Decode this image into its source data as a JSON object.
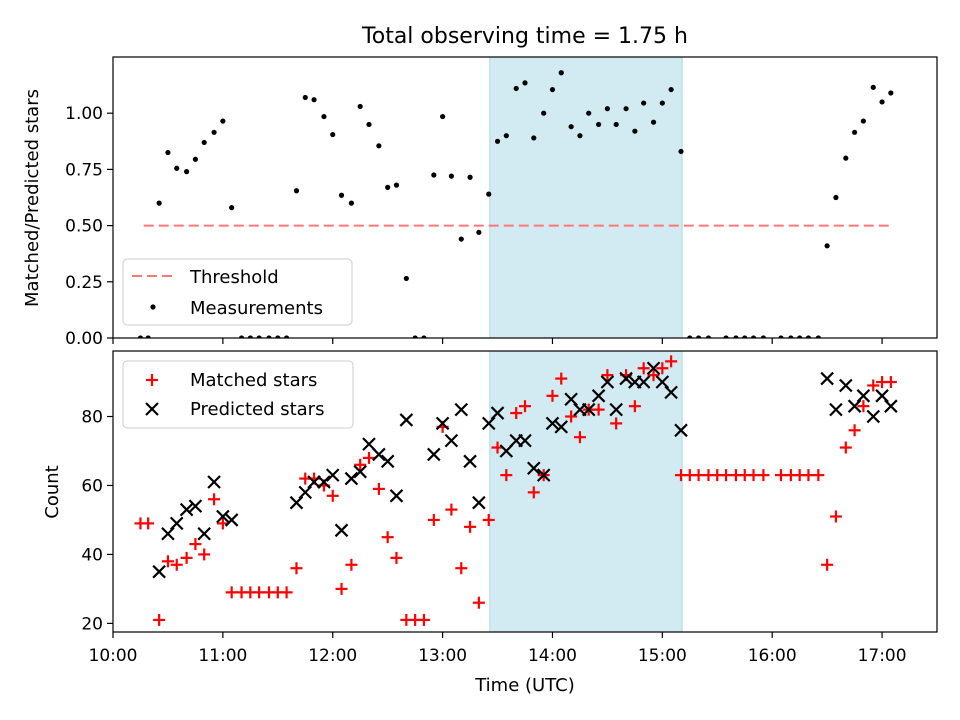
{
  "chart_data": {
    "title": "Total observing time = 1.75 h",
    "xlabel": "Time (UTC)",
    "xlim_hours": [
      10.0,
      17.5
    ],
    "x_tick_labels": [
      "10:00",
      "11:00",
      "12:00",
      "13:00",
      "14:00",
      "15:00",
      "16:00",
      "17:00"
    ],
    "x_tick_hours": [
      10,
      11,
      12,
      13,
      14,
      15,
      16,
      17
    ],
    "highlight_span_hours": [
      13.43,
      15.18
    ],
    "highlight_color": "#add8e6",
    "panels": [
      {
        "type": "scatter",
        "ylabel": "Matched/Predicted stars",
        "ylim": [
          0.0,
          1.25
        ],
        "y_ticks": [
          0.0,
          0.25,
          0.5,
          0.75,
          1.0
        ],
        "y_tick_labels": [
          "0.00",
          "0.25",
          "0.50",
          "0.75",
          "1.00"
        ],
        "legend_position": "lower-left",
        "threshold": {
          "name": "Threshold",
          "value": 0.5,
          "x_range_hours": [
            10.28,
            17.1
          ],
          "color": "#ff7777"
        },
        "series": [
          {
            "name": "Measurements",
            "marker": "dot",
            "color": "#000000",
            "points": [
              [
                10.25,
                0.0
              ],
              [
                10.32,
                0.0
              ],
              [
                10.42,
                0.6
              ],
              [
                10.5,
                0.825
              ],
              [
                10.58,
                0.755
              ],
              [
                10.67,
                0.74
              ],
              [
                10.75,
                0.795
              ],
              [
                10.83,
                0.87
              ],
              [
                10.92,
                0.915
              ],
              [
                11.0,
                0.965
              ],
              [
                11.08,
                0.58
              ],
              [
                11.17,
                0.0
              ],
              [
                11.25,
                0.0
              ],
              [
                11.33,
                0.0
              ],
              [
                11.42,
                0.0
              ],
              [
                11.5,
                0.0
              ],
              [
                11.58,
                0.0
              ],
              [
                11.67,
                0.655
              ],
              [
                11.75,
                1.07
              ],
              [
                11.83,
                1.06
              ],
              [
                11.92,
                0.985
              ],
              [
                12.0,
                0.905
              ],
              [
                12.08,
                0.635
              ],
              [
                12.17,
                0.6
              ],
              [
                12.25,
                1.03
              ],
              [
                12.33,
                0.95
              ],
              [
                12.42,
                0.855
              ],
              [
                12.5,
                0.67
              ],
              [
                12.58,
                0.68
              ],
              [
                12.67,
                0.265
              ],
              [
                12.75,
                0.0
              ],
              [
                12.83,
                0.0
              ],
              [
                12.92,
                0.725
              ],
              [
                13.0,
                0.985
              ],
              [
                13.08,
                0.72
              ],
              [
                13.17,
                0.44
              ],
              [
                13.25,
                0.715
              ],
              [
                13.33,
                0.47
              ],
              [
                13.42,
                0.64
              ],
              [
                13.5,
                0.875
              ],
              [
                13.58,
                0.9
              ],
              [
                13.67,
                1.11
              ],
              [
                13.75,
                1.135
              ],
              [
                13.83,
                0.89
              ],
              [
                13.92,
                1.0
              ],
              [
                14.0,
                1.105
              ],
              [
                14.08,
                1.18
              ],
              [
                14.17,
                0.94
              ],
              [
                14.25,
                0.9
              ],
              [
                14.33,
                1.0
              ],
              [
                14.42,
                0.95
              ],
              [
                14.5,
                1.02
              ],
              [
                14.58,
                0.95
              ],
              [
                14.67,
                1.02
              ],
              [
                14.75,
                0.92
              ],
              [
                14.83,
                1.045
              ],
              [
                14.92,
                0.96
              ],
              [
                15.0,
                1.045
              ],
              [
                15.08,
                1.105
              ],
              [
                15.17,
                0.83
              ],
              [
                15.25,
                0.0
              ],
              [
                15.33,
                0.0
              ],
              [
                15.42,
                0.0
              ],
              [
                15.58,
                0.0
              ],
              [
                15.67,
                0.0
              ],
              [
                15.75,
                0.0
              ],
              [
                15.83,
                0.0
              ],
              [
                15.92,
                0.0
              ],
              [
                16.08,
                0.0
              ],
              [
                16.17,
                0.0
              ],
              [
                16.25,
                0.0
              ],
              [
                16.33,
                0.0
              ],
              [
                16.42,
                0.0
              ],
              [
                16.5,
                0.41
              ],
              [
                16.58,
                0.625
              ],
              [
                16.67,
                0.8
              ],
              [
                16.75,
                0.915
              ],
              [
                16.83,
                0.965
              ],
              [
                16.92,
                1.115
              ],
              [
                17.0,
                1.05
              ],
              [
                17.08,
                1.09
              ]
            ]
          }
        ]
      },
      {
        "type": "scatter",
        "ylabel": "Count",
        "ylim": [
          17.5,
          99
        ],
        "y_ticks": [
          20,
          40,
          60,
          80
        ],
        "y_tick_labels": [
          "20",
          "40",
          "60",
          "80"
        ],
        "legend_position": "upper-left",
        "series": [
          {
            "name": "Matched stars",
            "marker": "plus",
            "color": "#ff0000",
            "points": [
              [
                10.25,
                49
              ],
              [
                10.32,
                49
              ],
              [
                10.42,
                21
              ],
              [
                10.5,
                38
              ],
              [
                10.58,
                37
              ],
              [
                10.67,
                39
              ],
              [
                10.75,
                43
              ],
              [
                10.83,
                40
              ],
              [
                10.92,
                56
              ],
              [
                11.0,
                49
              ],
              [
                11.08,
                29
              ],
              [
                11.17,
                29
              ],
              [
                11.25,
                29
              ],
              [
                11.33,
                29
              ],
              [
                11.42,
                29
              ],
              [
                11.5,
                29
              ],
              [
                11.58,
                29
              ],
              [
                11.67,
                36
              ],
              [
                11.75,
                62
              ],
              [
                11.83,
                62
              ],
              [
                11.92,
                60
              ],
              [
                12.0,
                57
              ],
              [
                12.08,
                30
              ],
              [
                12.17,
                37
              ],
              [
                12.25,
                66
              ],
              [
                12.33,
                68
              ],
              [
                12.42,
                59
              ],
              [
                12.5,
                45
              ],
              [
                12.58,
                39
              ],
              [
                12.67,
                21
              ],
              [
                12.75,
                21
              ],
              [
                12.83,
                21
              ],
              [
                12.92,
                50
              ],
              [
                13.0,
                77
              ],
              [
                13.08,
                53
              ],
              [
                13.17,
                36
              ],
              [
                13.25,
                48
              ],
              [
                13.33,
                26
              ],
              [
                13.42,
                50
              ],
              [
                13.5,
                71
              ],
              [
                13.58,
                63
              ],
              [
                13.67,
                81
              ],
              [
                13.75,
                83
              ],
              [
                13.83,
                58
              ],
              [
                13.92,
                63
              ],
              [
                14.0,
                86
              ],
              [
                14.08,
                91
              ],
              [
                14.17,
                80
              ],
              [
                14.25,
                74
              ],
              [
                14.33,
                82
              ],
              [
                14.42,
                82
              ],
              [
                14.5,
                92
              ],
              [
                14.58,
                78
              ],
              [
                14.67,
                92
              ],
              [
                14.75,
                83
              ],
              [
                14.83,
                94
              ],
              [
                14.92,
                92
              ],
              [
                15.0,
                94
              ],
              [
                15.08,
                96
              ],
              [
                15.17,
                63
              ],
              [
                15.25,
                63
              ],
              [
                15.33,
                63
              ],
              [
                15.42,
                63
              ],
              [
                15.5,
                63
              ],
              [
                15.58,
                63
              ],
              [
                15.67,
                63
              ],
              [
                15.75,
                63
              ],
              [
                15.83,
                63
              ],
              [
                15.92,
                63
              ],
              [
                16.08,
                63
              ],
              [
                16.17,
                63
              ],
              [
                16.25,
                63
              ],
              [
                16.33,
                63
              ],
              [
                16.42,
                63
              ],
              [
                16.5,
                37
              ],
              [
                16.58,
                51
              ],
              [
                16.67,
                71
              ],
              [
                16.75,
                76
              ],
              [
                16.83,
                83
              ],
              [
                16.92,
                89
              ],
              [
                17.0,
                90
              ],
              [
                17.08,
                90
              ]
            ]
          },
          {
            "name": "Predicted stars",
            "marker": "x",
            "color": "#000000",
            "points": [
              [
                10.42,
                35
              ],
              [
                10.5,
                46
              ],
              [
                10.58,
                49
              ],
              [
                10.67,
                53
              ],
              [
                10.75,
                54
              ],
              [
                10.83,
                46
              ],
              [
                10.92,
                61
              ],
              [
                11.0,
                51
              ],
              [
                11.08,
                50
              ],
              [
                11.67,
                55
              ],
              [
                11.75,
                58
              ],
              [
                11.83,
                61
              ],
              [
                11.92,
                61
              ],
              [
                12.0,
                63
              ],
              [
                12.08,
                47
              ],
              [
                12.17,
                62
              ],
              [
                12.25,
                64
              ],
              [
                12.33,
                72
              ],
              [
                12.42,
                69
              ],
              [
                12.5,
                67
              ],
              [
                12.58,
                57
              ],
              [
                12.67,
                79
              ],
              [
                12.92,
                69
              ],
              [
                13.0,
                78
              ],
              [
                13.08,
                73
              ],
              [
                13.17,
                82
              ],
              [
                13.25,
                67
              ],
              [
                13.33,
                55
              ],
              [
                13.42,
                78
              ],
              [
                13.5,
                81
              ],
              [
                13.58,
                70
              ],
              [
                13.67,
                73
              ],
              [
                13.75,
                73
              ],
              [
                13.83,
                65
              ],
              [
                13.92,
                63
              ],
              [
                14.0,
                78
              ],
              [
                14.08,
                77
              ],
              [
                14.17,
                85
              ],
              [
                14.25,
                82
              ],
              [
                14.33,
                82
              ],
              [
                14.42,
                86
              ],
              [
                14.5,
                90
              ],
              [
                14.58,
                82
              ],
              [
                14.67,
                91
              ],
              [
                14.75,
                90
              ],
              [
                14.83,
                90
              ],
              [
                14.92,
                94
              ],
              [
                15.0,
                90
              ],
              [
                15.08,
                87
              ],
              [
                15.17,
                76
              ],
              [
                16.5,
                91
              ],
              [
                16.58,
                82
              ],
              [
                16.67,
                89
              ],
              [
                16.75,
                83
              ],
              [
                16.83,
                86
              ],
              [
                16.92,
                80
              ],
              [
                17.0,
                86
              ],
              [
                17.08,
                83
              ]
            ]
          }
        ]
      }
    ]
  }
}
